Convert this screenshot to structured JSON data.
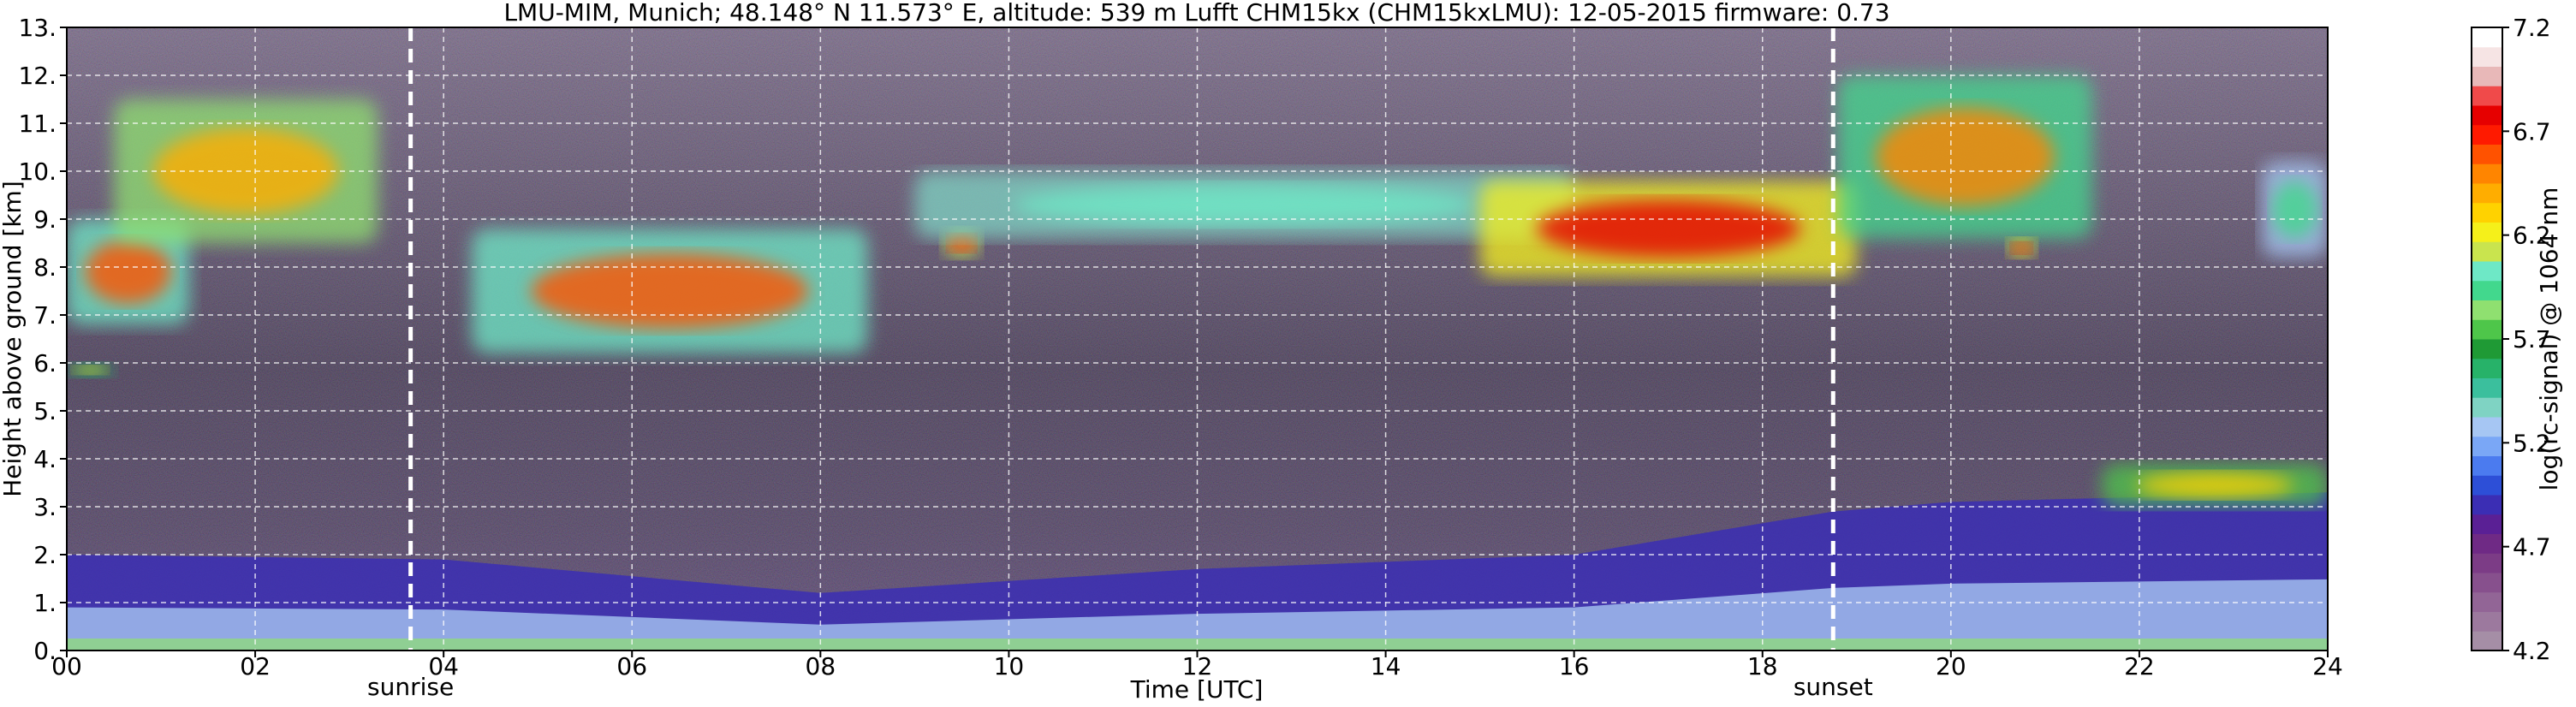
{
  "chart_data": {
    "type": "heatmap",
    "title": "LMU-MIM, Munich; 48.148° N 11.573° E, altitude: 539 m    Lufft CHM15kx (CHM15kxLMU): 12-05-2015    firmware: 0.73",
    "xlabel": "Time [UTC]",
    "ylabel": "Height above ground [km]",
    "xlim": [
      0,
      24
    ],
    "ylim": [
      0,
      13
    ],
    "x_ticks": [
      "00",
      "02",
      "04",
      "06",
      "08",
      "10",
      "12",
      "14",
      "16",
      "18",
      "20",
      "22",
      "24"
    ],
    "y_ticks": [
      "0.",
      "1.",
      "2.",
      "3.",
      "4.",
      "5.",
      "6.",
      "7.",
      "8.",
      "9.",
      "10.",
      "11.",
      "12.",
      "13."
    ],
    "grid": true,
    "colorbar": {
      "label": "log(rc-signal) @ 1064 nm",
      "range": [
        4.2,
        7.2
      ],
      "ticks": [
        "4.2",
        "4.7",
        "5.2",
        "5.7",
        "6.2",
        "6.7",
        "7.2"
      ],
      "colors": [
        "#a58ea6",
        "#9c799e",
        "#926596",
        "#87508d",
        "#7c3c86",
        "#6f2a85",
        "#5a2095",
        "#3b2eb4",
        "#2d4fd7",
        "#4b7bef",
        "#7aa7f6",
        "#a6c6f3",
        "#7fd3c3",
        "#3bbf9d",
        "#27b269",
        "#1f9a35",
        "#4ec64a",
        "#8fe070",
        "#42d88d",
        "#6ee8c6",
        "#c9e44e",
        "#f5f01a",
        "#ffd200",
        "#ffad00",
        "#ff8500",
        "#ff5200",
        "#ff1a00",
        "#e60000",
        "#f04a4a",
        "#e8b8b8",
        "#f6e4e4",
        "#ffffff"
      ]
    },
    "events": [
      {
        "label": "sunrise",
        "time": 3.65
      },
      {
        "label": "sunset",
        "time": 18.75
      }
    ],
    "cloud_layers": [
      {
        "t_start": 0.0,
        "t_end": 1.3,
        "h_low": 6.8,
        "h_high": 9.0,
        "intensity": 6.6
      },
      {
        "t_start": 0.5,
        "t_end": 3.3,
        "h_low": 8.5,
        "h_high": 11.5,
        "intensity": 6.4
      },
      {
        "t_start": 0.0,
        "t_end": 0.5,
        "h_low": 5.7,
        "h_high": 6.0,
        "intensity": 6.2
      },
      {
        "t_start": 4.3,
        "t_end": 8.5,
        "h_low": 6.2,
        "h_high": 8.8,
        "intensity": 6.6
      },
      {
        "t_start": 9.3,
        "t_end": 9.7,
        "h_low": 8.2,
        "h_high": 8.8,
        "intensity": 6.7
      },
      {
        "t_start": 9.0,
        "t_end": 16.0,
        "h_low": 8.6,
        "h_high": 10.0,
        "intensity": 6.0
      },
      {
        "t_start": 15.0,
        "t_end": 19.0,
        "h_low": 7.8,
        "h_high": 9.8,
        "intensity": 6.8
      },
      {
        "t_start": 18.8,
        "t_end": 21.5,
        "h_low": 8.6,
        "h_high": 12.0,
        "intensity": 6.5
      },
      {
        "t_start": 20.6,
        "t_end": 20.9,
        "h_low": 8.2,
        "h_high": 8.6,
        "intensity": 6.8
      },
      {
        "t_start": 23.3,
        "t_end": 24.0,
        "h_low": 8.2,
        "h_high": 10.2,
        "intensity": 5.9
      },
      {
        "t_start": 21.6,
        "t_end": 24.0,
        "h_low": 3.0,
        "h_high": 3.9,
        "intensity": 6.3
      }
    ],
    "boundary_layer": [
      {
        "time": 0,
        "top_km": 2.0
      },
      {
        "time": 4,
        "top_km": 1.9
      },
      {
        "time": 8,
        "top_km": 1.2
      },
      {
        "time": 12,
        "top_km": 1.7
      },
      {
        "time": 16,
        "top_km": 2.0
      },
      {
        "time": 18.75,
        "top_km": 2.9
      },
      {
        "time": 20,
        "top_km": 3.1
      },
      {
        "time": 24,
        "top_km": 3.3
      }
    ]
  }
}
